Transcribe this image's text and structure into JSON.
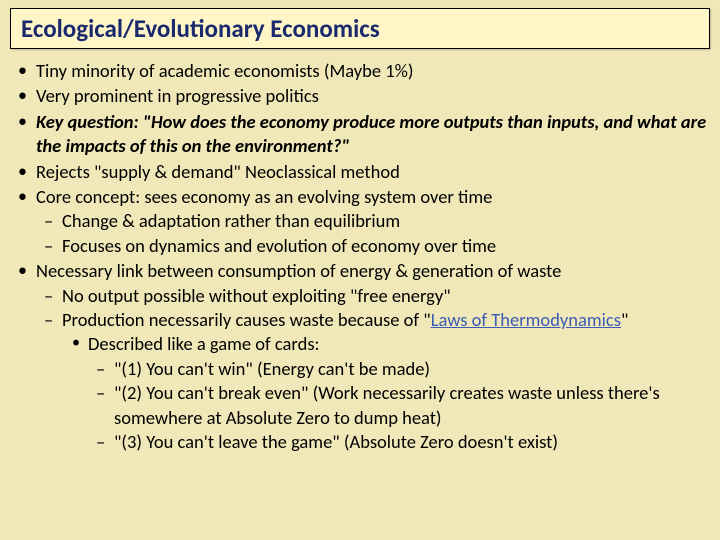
{
  "colors": {
    "background": "#f0e8b8",
    "titleBox": "#fff6c8",
    "titleBorder": "#000000",
    "titleText": "#1a2a6c",
    "bodyText": "#000000",
    "linkColor": "#3b5bb5"
  },
  "typography": {
    "titleFontSize": 25,
    "bodyFontSize": 18.5,
    "fontFamily": "Calibri"
  },
  "title": "Ecological/Evolutionary Economics",
  "bullets": {
    "b1": "Tiny minority of academic economists (Maybe 1%)",
    "b2": "Very prominent in progressive politics",
    "b3a": "Key question: \"How does the economy produce more outputs than inputs, and what are the impacts of this on the environment?\"",
    "b4": "Rejects \"supply & demand\" Neoclassical method",
    "b5": "Core concept: sees economy as an evolving system over time",
    "b5s1": "Change & adaptation rather than equilibrium",
    "b5s2": "Focuses on dynamics and evolution of economy over time",
    "b6": "Necessary link between consumption of energy & generation of waste",
    "b6s1": "No output possible without exploiting \"free energy\"",
    "b6s2a": "Production necessarily causes waste because of \"",
    "b6s2link": "Laws of Thermodynamics",
    "b6s2b": "\"",
    "b6s2c1": "Described like a game of cards:",
    "b6s2c1d1": "\"(1) You can't win\" (Energy can't be made)",
    "b6s2c1d2": "\"(2) You can't break even\" (Work necessarily creates waste unless there's somewhere at Absolute Zero to dump heat)",
    "b6s2c1d3": "\"(3) You can't leave the game\" (Absolute Zero doesn't exist)"
  }
}
